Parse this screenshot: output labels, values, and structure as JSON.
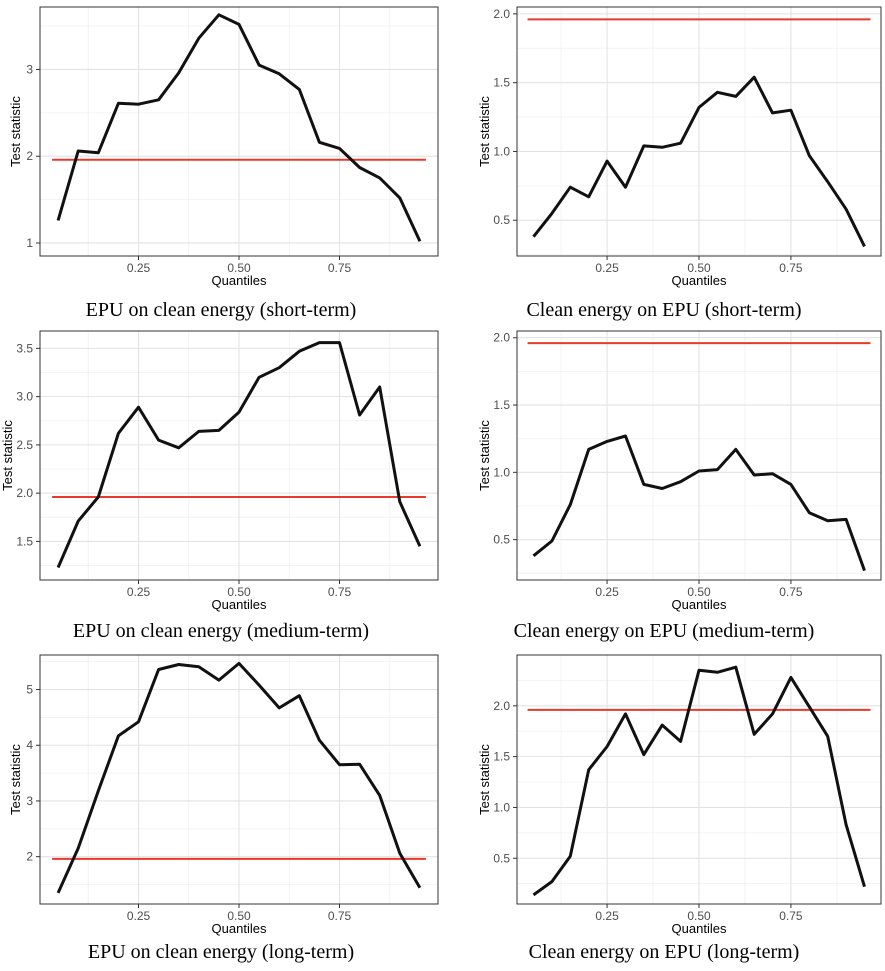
{
  "chart_data": [
    {
      "type": "line",
      "caption": "EPU on clean energy (short-term)",
      "xlabel": "Quantiles",
      "ylabel": "Test statistic",
      "x_ticks": [
        "0.25",
        "0.50",
        "0.75"
      ],
      "y_ticks": [
        "1",
        "2",
        "3"
      ],
      "xlim": [
        0.005,
        0.995
      ],
      "ylim": [
        0.85,
        3.72
      ],
      "grid": true,
      "series": [
        {
          "values": [
            [
              0.05,
              1.26
            ],
            [
              0.1,
              2.06
            ],
            [
              0.15,
              2.04
            ],
            [
              0.2,
              2.61
            ],
            [
              0.25,
              2.6
            ],
            [
              0.3,
              2.65
            ],
            [
              0.35,
              2.96
            ],
            [
              0.4,
              3.36
            ],
            [
              0.45,
              3.63
            ],
            [
              0.5,
              3.52
            ],
            [
              0.55,
              3.05
            ],
            [
              0.6,
              2.95
            ],
            [
              0.65,
              2.77
            ],
            [
              0.7,
              2.16
            ],
            [
              0.75,
              2.09
            ],
            [
              0.8,
              1.87
            ],
            [
              0.85,
              1.75
            ],
            [
              0.9,
              1.52
            ],
            [
              0.95,
              1.02
            ]
          ]
        }
      ],
      "reference_line": {
        "y": 1.96,
        "color": "#e8392a"
      },
      "line_color": "#111111"
    },
    {
      "type": "line",
      "caption": "Clean energy on EPU (short-term)",
      "xlabel": "Quantiles",
      "ylabel": "Test statistic",
      "x_ticks": [
        "0.25",
        "0.50",
        "0.75"
      ],
      "y_ticks": [
        "0.5",
        "1.0",
        "1.5",
        "2.0"
      ],
      "xlim": [
        0.005,
        0.995
      ],
      "ylim": [
        0.24,
        2.05
      ],
      "grid": true,
      "series": [
        {
          "values": [
            [
              0.05,
              0.38
            ],
            [
              0.1,
              0.55
            ],
            [
              0.15,
              0.74
            ],
            [
              0.2,
              0.67
            ],
            [
              0.25,
              0.93
            ],
            [
              0.3,
              0.74
            ],
            [
              0.35,
              1.04
            ],
            [
              0.4,
              1.03
            ],
            [
              0.45,
              1.06
            ],
            [
              0.5,
              1.32
            ],
            [
              0.55,
              1.43
            ],
            [
              0.6,
              1.4
            ],
            [
              0.65,
              1.54
            ],
            [
              0.7,
              1.28
            ],
            [
              0.75,
              1.3
            ],
            [
              0.8,
              0.97
            ],
            [
              0.85,
              0.78
            ],
            [
              0.9,
              0.58
            ],
            [
              0.95,
              0.31
            ]
          ]
        }
      ],
      "reference_line": {
        "y": 1.96,
        "color": "#e8392a"
      },
      "line_color": "#111111"
    },
    {
      "type": "line",
      "caption": "EPU on clean energy (medium-term)",
      "xlabel": "Quantiles",
      "ylabel": "Test statistic",
      "x_ticks": [
        "0.25",
        "0.50",
        "0.75"
      ],
      "y_ticks": [
        "1.5",
        "2.0",
        "2.5",
        "3.0",
        "3.5"
      ],
      "xlim": [
        0.005,
        0.995
      ],
      "ylim": [
        1.1,
        3.68
      ],
      "grid": true,
      "series": [
        {
          "values": [
            [
              0.05,
              1.23
            ],
            [
              0.1,
              1.71
            ],
            [
              0.15,
              1.96
            ],
            [
              0.2,
              2.62
            ],
            [
              0.25,
              2.89
            ],
            [
              0.3,
              2.55
            ],
            [
              0.35,
              2.47
            ],
            [
              0.4,
              2.64
            ],
            [
              0.45,
              2.65
            ],
            [
              0.5,
              2.84
            ],
            [
              0.55,
              3.2
            ],
            [
              0.6,
              3.3
            ],
            [
              0.65,
              3.47
            ],
            [
              0.7,
              3.56
            ],
            [
              0.75,
              3.56
            ],
            [
              0.8,
              2.81
            ],
            [
              0.85,
              3.1
            ],
            [
              0.9,
              1.91
            ],
            [
              0.95,
              1.45
            ]
          ]
        }
      ],
      "reference_line": {
        "y": 1.96,
        "color": "#e8392a"
      },
      "line_color": "#111111"
    },
    {
      "type": "line",
      "caption": "Clean energy on EPU (medium-term)",
      "xlabel": "Quantiles",
      "ylabel": "Test statistic",
      "x_ticks": [
        "0.25",
        "0.50",
        "0.75"
      ],
      "y_ticks": [
        "0.5",
        "1.0",
        "1.5",
        "2.0"
      ],
      "xlim": [
        0.005,
        0.995
      ],
      "ylim": [
        0.2,
        2.05
      ],
      "grid": true,
      "series": [
        {
          "values": [
            [
              0.05,
              0.38
            ],
            [
              0.1,
              0.49
            ],
            [
              0.15,
              0.76
            ],
            [
              0.2,
              1.17
            ],
            [
              0.25,
              1.23
            ],
            [
              0.3,
              1.27
            ],
            [
              0.35,
              0.91
            ],
            [
              0.4,
              0.88
            ],
            [
              0.45,
              0.93
            ],
            [
              0.5,
              1.01
            ],
            [
              0.55,
              1.02
            ],
            [
              0.6,
              1.17
            ],
            [
              0.65,
              0.98
            ],
            [
              0.7,
              0.99
            ],
            [
              0.75,
              0.91
            ],
            [
              0.8,
              0.7
            ],
            [
              0.85,
              0.64
            ],
            [
              0.9,
              0.65
            ],
            [
              0.95,
              0.27
            ]
          ]
        }
      ],
      "reference_line": {
        "y": 1.96,
        "color": "#e8392a"
      },
      "line_color": "#111111"
    },
    {
      "type": "line",
      "caption": "EPU on clean energy (long-term)",
      "xlabel": "Quantiles",
      "ylabel": "Test statistic",
      "x_ticks": [
        "0.25",
        "0.50",
        "0.75"
      ],
      "y_ticks": [
        "2",
        "3",
        "4",
        "5"
      ],
      "xlim": [
        0.005,
        0.995
      ],
      "ylim": [
        1.15,
        5.62
      ],
      "grid": true,
      "series": [
        {
          "values": [
            [
              0.05,
              1.35
            ],
            [
              0.1,
              2.15
            ],
            [
              0.15,
              3.18
            ],
            [
              0.2,
              4.17
            ],
            [
              0.25,
              4.42
            ],
            [
              0.3,
              5.36
            ],
            [
              0.35,
              5.45
            ],
            [
              0.4,
              5.41
            ],
            [
              0.45,
              5.17
            ],
            [
              0.5,
              5.47
            ],
            [
              0.55,
              5.08
            ],
            [
              0.6,
              4.67
            ],
            [
              0.65,
              4.89
            ],
            [
              0.7,
              4.09
            ],
            [
              0.75,
              3.65
            ],
            [
              0.8,
              3.66
            ],
            [
              0.85,
              3.1
            ],
            [
              0.9,
              2.06
            ],
            [
              0.95,
              1.44
            ]
          ]
        }
      ],
      "reference_line": {
        "y": 1.96,
        "color": "#e8392a"
      },
      "line_color": "#111111"
    },
    {
      "type": "line",
      "caption": "Clean energy on EPU (long-term)",
      "xlabel": "Quantiles",
      "ylabel": "Test statistic",
      "x_ticks": [
        "0.25",
        "0.50",
        "0.75"
      ],
      "y_ticks": [
        "0.5",
        "1.0",
        "1.5",
        "2.0"
      ],
      "xlim": [
        0.005,
        0.995
      ],
      "ylim": [
        0.05,
        2.5
      ],
      "grid": true,
      "series": [
        {
          "values": [
            [
              0.05,
              0.14
            ],
            [
              0.1,
              0.27
            ],
            [
              0.15,
              0.52
            ],
            [
              0.2,
              1.37
            ],
            [
              0.25,
              1.6
            ],
            [
              0.3,
              1.92
            ],
            [
              0.35,
              1.52
            ],
            [
              0.4,
              1.81
            ],
            [
              0.45,
              1.65
            ],
            [
              0.5,
              2.35
            ],
            [
              0.55,
              2.33
            ],
            [
              0.6,
              2.38
            ],
            [
              0.65,
              1.72
            ],
            [
              0.7,
              1.92
            ],
            [
              0.75,
              2.28
            ],
            [
              0.8,
              1.99
            ],
            [
              0.85,
              1.7
            ],
            [
              0.9,
              0.83
            ],
            [
              0.95,
              0.22
            ]
          ]
        }
      ],
      "reference_line": {
        "y": 1.96,
        "color": "#e8392a"
      },
      "line_color": "#111111"
    }
  ]
}
